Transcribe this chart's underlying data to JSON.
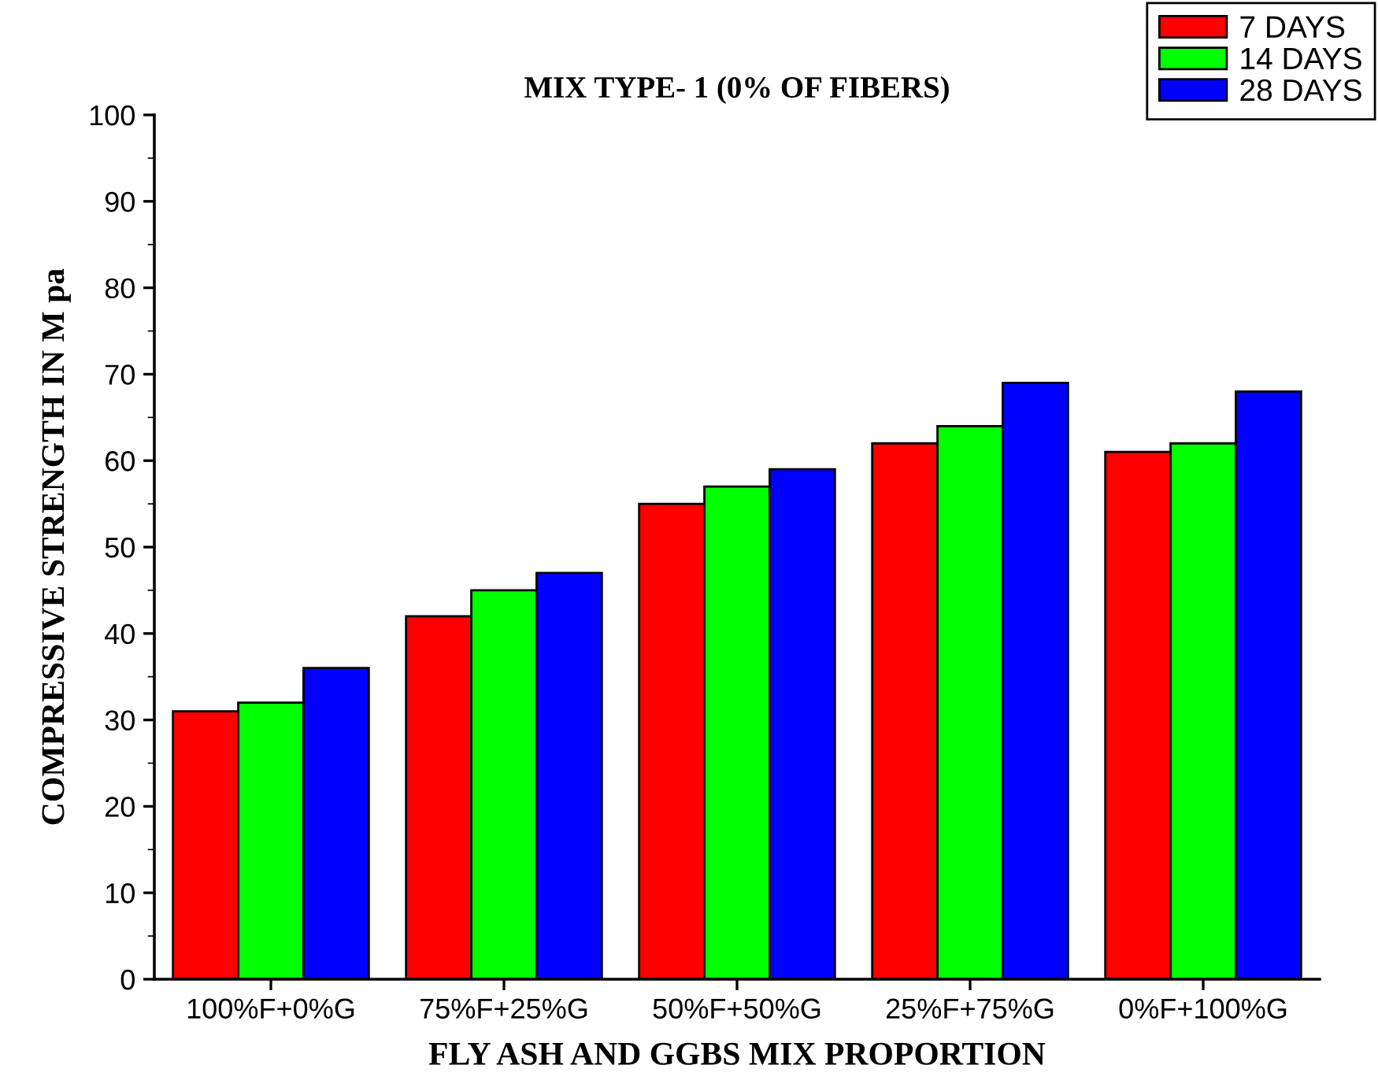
{
  "chart_data": {
    "type": "bar",
    "title": "MIX TYPE- 1 (0% OF FIBERS)",
    "xlabel": "FLY ASH AND GGBS MIX PROPORTION",
    "ylabel": "COMPRESSIVE STRENGTH IN M pa",
    "categories": [
      "100%F+0%G",
      "75%F+25%G",
      "50%F+50%G",
      "25%F+75%G",
      "0%F+100%G"
    ],
    "series": [
      {
        "name": "7 DAYS",
        "color": "#ff0000",
        "values": [
          31,
          42,
          55,
          62,
          61
        ]
      },
      {
        "name": "14 DAYS",
        "color": "#00ff00",
        "values": [
          32,
          45,
          57,
          64,
          62
        ]
      },
      {
        "name": "28 DAYS",
        "color": "#0000ff",
        "values": [
          36,
          47,
          59,
          69,
          68
        ]
      }
    ],
    "ylim": [
      0,
      100
    ],
    "yticks": [
      0,
      10,
      20,
      30,
      40,
      50,
      60,
      70,
      80,
      90,
      100
    ],
    "grid": false,
    "legend": "top right"
  }
}
